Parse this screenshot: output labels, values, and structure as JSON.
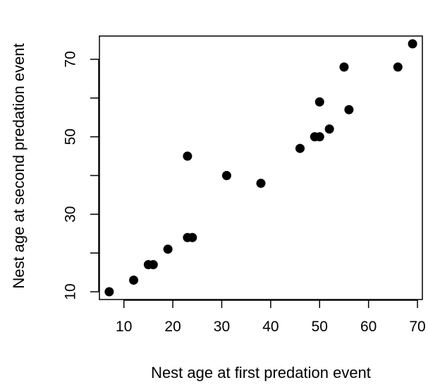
{
  "chart_data": {
    "type": "scatter",
    "title": "",
    "xlabel": "Nest age at first predation event",
    "ylabel": "Nest age at second predation event",
    "xlim": [
      5,
      71
    ],
    "ylim": [
      8,
      76
    ],
    "x_ticks": [
      10,
      20,
      30,
      40,
      50,
      60,
      70
    ],
    "y_ticks": [
      10,
      20,
      30,
      40,
      50,
      60,
      70
    ],
    "y_tick_labels": [
      {
        "value": 10,
        "label": "10"
      },
      {
        "value": 30,
        "label": "30"
      },
      {
        "value": 50,
        "label": "50"
      },
      {
        "value": 70,
        "label": "70"
      }
    ],
    "grid": false,
    "marker_color": "#000000",
    "points": [
      {
        "x": 7,
        "y": 10
      },
      {
        "x": 12,
        "y": 13
      },
      {
        "x": 15,
        "y": 17
      },
      {
        "x": 16,
        "y": 17
      },
      {
        "x": 19,
        "y": 21
      },
      {
        "x": 23,
        "y": 24
      },
      {
        "x": 24,
        "y": 24
      },
      {
        "x": 23,
        "y": 45
      },
      {
        "x": 31,
        "y": 40
      },
      {
        "x": 38,
        "y": 38
      },
      {
        "x": 46,
        "y": 47
      },
      {
        "x": 49,
        "y": 50
      },
      {
        "x": 50,
        "y": 50
      },
      {
        "x": 50,
        "y": 59
      },
      {
        "x": 52,
        "y": 52
      },
      {
        "x": 55,
        "y": 68
      },
      {
        "x": 56,
        "y": 57
      },
      {
        "x": 66,
        "y": 68
      },
      {
        "x": 69,
        "y": 74
      }
    ]
  }
}
